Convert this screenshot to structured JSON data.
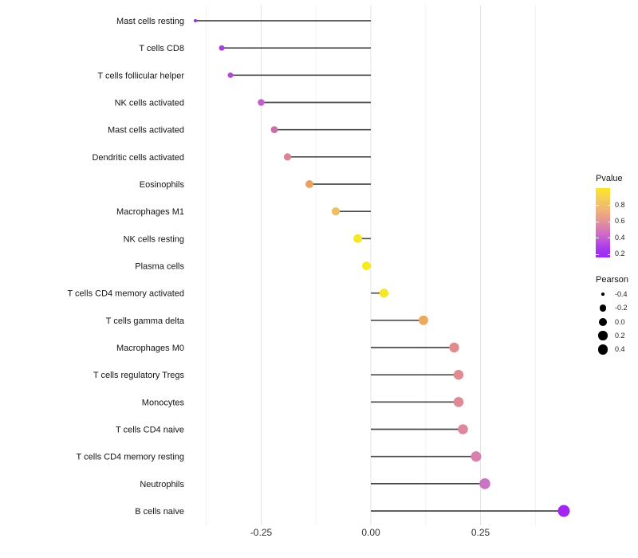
{
  "chart_data": {
    "type": "scatter",
    "subtype": "lollipop",
    "title": "",
    "xlabel": "",
    "ylabel": "",
    "grid": true,
    "legend_position": "right",
    "x_tick_labels": [
      "-0.25",
      "0.00",
      "0.25"
    ],
    "x_tick_values": [
      -0.25,
      0,
      0.25
    ],
    "x_minor_gridlines": [
      -0.375,
      -0.125,
      0.125,
      0.375
    ],
    "xlim": [
      -0.465,
      0.49
    ],
    "baseline": 0,
    "points": [
      {
        "label": "Mast cells resting",
        "pearson": -0.4,
        "color": "#9a30df",
        "r": 2.0
      },
      {
        "label": "T cells CD8",
        "pearson": -0.34,
        "color": "#a83fd6",
        "r": 3.4
      },
      {
        "label": "T cells follicular helper",
        "pearson": -0.32,
        "color": "#b14bd2",
        "r": 3.5
      },
      {
        "label": "NK cells activated",
        "pearson": -0.25,
        "color": "#c260c4",
        "r": 4.3
      },
      {
        "label": "Mast cells activated",
        "pearson": -0.22,
        "color": "#c96fa6",
        "r": 4.4
      },
      {
        "label": "Dendritic cells activated",
        "pearson": -0.19,
        "color": "#db8391",
        "r": 4.6
      },
      {
        "label": "Eosinophils",
        "pearson": -0.14,
        "color": "#e9a263",
        "r": 5.0
      },
      {
        "label": "Macrophages M1",
        "pearson": -0.08,
        "color": "#f0be62",
        "r": 5.1
      },
      {
        "label": "NK cells resting",
        "pearson": -0.03,
        "color": "#f5e926",
        "r": 5.4
      },
      {
        "label": "Plasma cells",
        "pearson": -0.01,
        "color": "#f7ec1b",
        "r": 5.4
      },
      {
        "label": "T cells CD4 memory activated",
        "pearson": 0.03,
        "color": "#f5e626",
        "r": 5.6
      },
      {
        "label": "T cells gamma delta",
        "pearson": 0.12,
        "color": "#eca95e",
        "r": 5.9
      },
      {
        "label": "Macrophages M0",
        "pearson": 0.19,
        "color": "#e18b8d",
        "r": 6.2
      },
      {
        "label": "T cells regulatory  Tregs",
        "pearson": 0.2,
        "color": "#e08a93",
        "r": 6.2
      },
      {
        "label": "Monocytes",
        "pearson": 0.2,
        "color": "#de8998",
        "r": 6.3
      },
      {
        "label": "T cells CD4 naive",
        "pearson": 0.21,
        "color": "#dd889c",
        "r": 6.3
      },
      {
        "label": "T cells CD4 memory resting",
        "pearson": 0.24,
        "color": "#d881af",
        "r": 6.5
      },
      {
        "label": "Neutrophils",
        "pearson": 0.26,
        "color": "#ca74c4",
        "r": 6.8
      },
      {
        "label": "B cells naive",
        "pearson": 0.44,
        "color": "#a228f0",
        "r": 7.5
      }
    ],
    "legend": {
      "pvalue": {
        "title": "Pvalue",
        "ticks": [
          "0.8",
          "0.6",
          "0.4",
          "0.2"
        ],
        "gradient_stops": [
          "#fbe624",
          "#f7d055",
          "#f2b871",
          "#ea9c8b",
          "#dd7fb0",
          "#c75ed3",
          "#ab3beb",
          "#9a2bf2"
        ]
      },
      "pearson": {
        "title": "Pearson",
        "items": [
          {
            "label": "-0.4",
            "r": 1.7
          },
          {
            "label": "-0.2",
            "r": 4.3
          },
          {
            "label": "0.0",
            "r": 5.0
          },
          {
            "label": "0.2",
            "r": 5.7
          },
          {
            "label": "0.4",
            "r": 6.3
          }
        ]
      }
    }
  },
  "colors": {
    "background": "#ffffff",
    "grid_major": "#e4e4e4",
    "grid_minor": "#f2f2f2",
    "axis_text": "#333333",
    "category_text": "#141414",
    "stem": "#4a4a4a"
  }
}
